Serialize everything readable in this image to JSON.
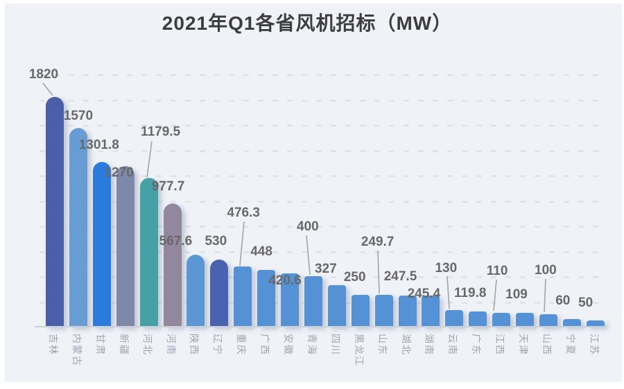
{
  "chart_data": {
    "type": "bar",
    "title": "2021年Q1各省风机招标（MW）",
    "categories": [
      "吉林",
      "内蒙古",
      "甘肃",
      "新疆",
      "河北",
      "河南",
      "陕西",
      "辽宁",
      "重庆",
      "广西",
      "安徽",
      "青海",
      "四川",
      "黑龙江",
      "山东",
      "湖北",
      "湖南",
      "云南",
      "广东",
      "江西",
      "天津",
      "山西",
      "宁夏",
      "江苏"
    ],
    "values": [
      1820,
      1570,
      1301.8,
      1270,
      1179.5,
      977.7,
      567.6,
      530,
      476.3,
      448,
      420.6,
      400,
      327,
      250,
      249.7,
      247.5,
      245.4,
      130,
      119.8,
      110,
      109,
      100,
      60,
      50
    ],
    "value_labels": [
      "1820",
      "1570",
      "1301.8",
      "1270",
      "1179.5",
      "977.7",
      "567.6",
      "530",
      "476.3",
      "448",
      "420.6",
      "400",
      "327",
      "250",
      "249.7",
      "247.5",
      "245.4",
      "130",
      "119.8",
      "110",
      "109",
      "100",
      "60",
      "50"
    ],
    "bar_colors": [
      "#4a5fa8",
      "#679dd3",
      "#2b7bdc",
      "#7e89aa",
      "#46a1a6",
      "#93879e",
      "#5b97d5",
      "#4a63b0",
      "#5592d5",
      "#5592d5",
      "#5592d5",
      "#5592d5",
      "#5592d5",
      "#5592d5",
      "#5592d5",
      "#5592d5",
      "#5592d5",
      "#5592d5",
      "#5592d5",
      "#5592d5",
      "#5592d5",
      "#5592d5",
      "#5592d5",
      "#5592d5"
    ],
    "xlabel": "",
    "ylabel": "",
    "ylim": [
      0,
      2000
    ],
    "grid_interval": 200,
    "grid": "horizontal-dashed",
    "legend_position": "none",
    "yaxis_tick_labels_shown": false,
    "value_labels_shown": true,
    "colors": {
      "panel_background": "#eff2f7",
      "page_background": "#ffffff",
      "title_text": "#3d3d3d",
      "value_label_text": "#686868",
      "axis_label_text": "#9fa5b0",
      "gridline": "#e0e3e9",
      "axis_line": "#ccd0d8",
      "leader_line": "#a0a5ad"
    }
  }
}
